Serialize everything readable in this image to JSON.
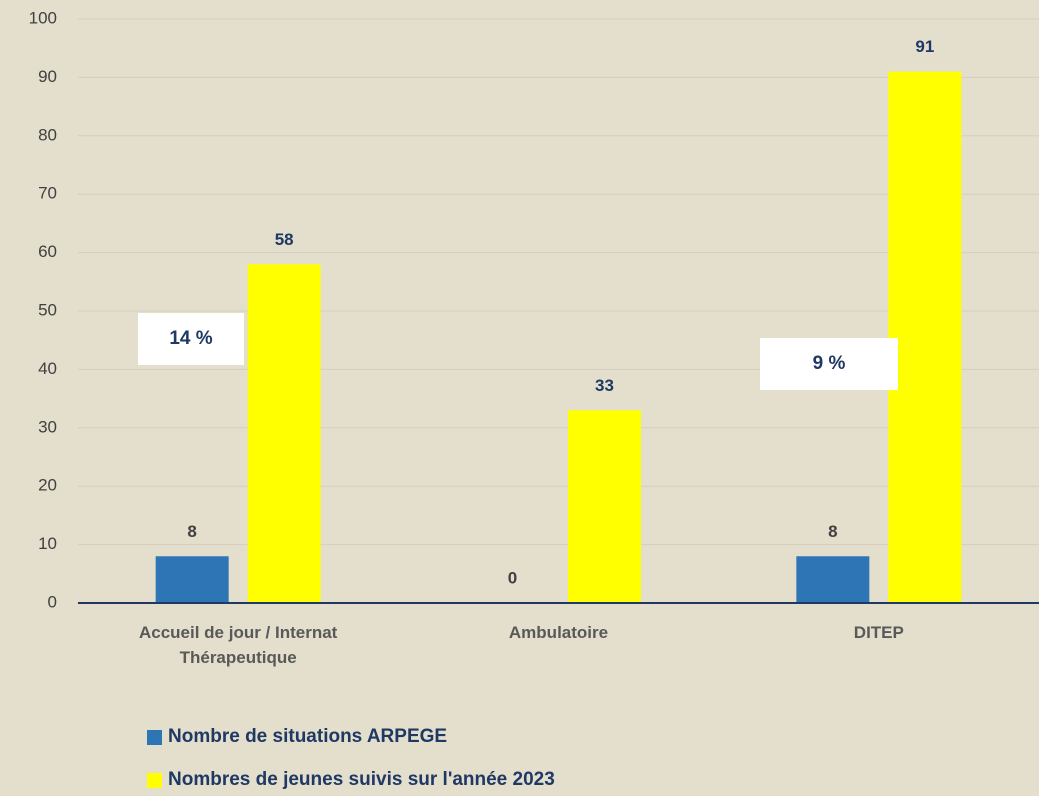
{
  "chart_data": {
    "type": "bar",
    "categories": [
      "Accueil de jour / Internat Thérapeutique",
      "Ambulatoire",
      "DITEP"
    ],
    "series": [
      {
        "name": "Nombre de situations ARPEGE",
        "color": "#2e75b6",
        "values": [
          8,
          0,
          8
        ]
      },
      {
        "name": "Nombres de jeunes suivis sur l'année 2023",
        "color": "#ffff00",
        "values": [
          58,
          33,
          91
        ]
      }
    ],
    "ylim": [
      0,
      100
    ],
    "yticks": [
      0,
      10,
      20,
      30,
      40,
      50,
      60,
      70,
      80,
      90,
      100
    ],
    "grid": true,
    "annotations": [
      "14 %",
      "9 %"
    ]
  }
}
